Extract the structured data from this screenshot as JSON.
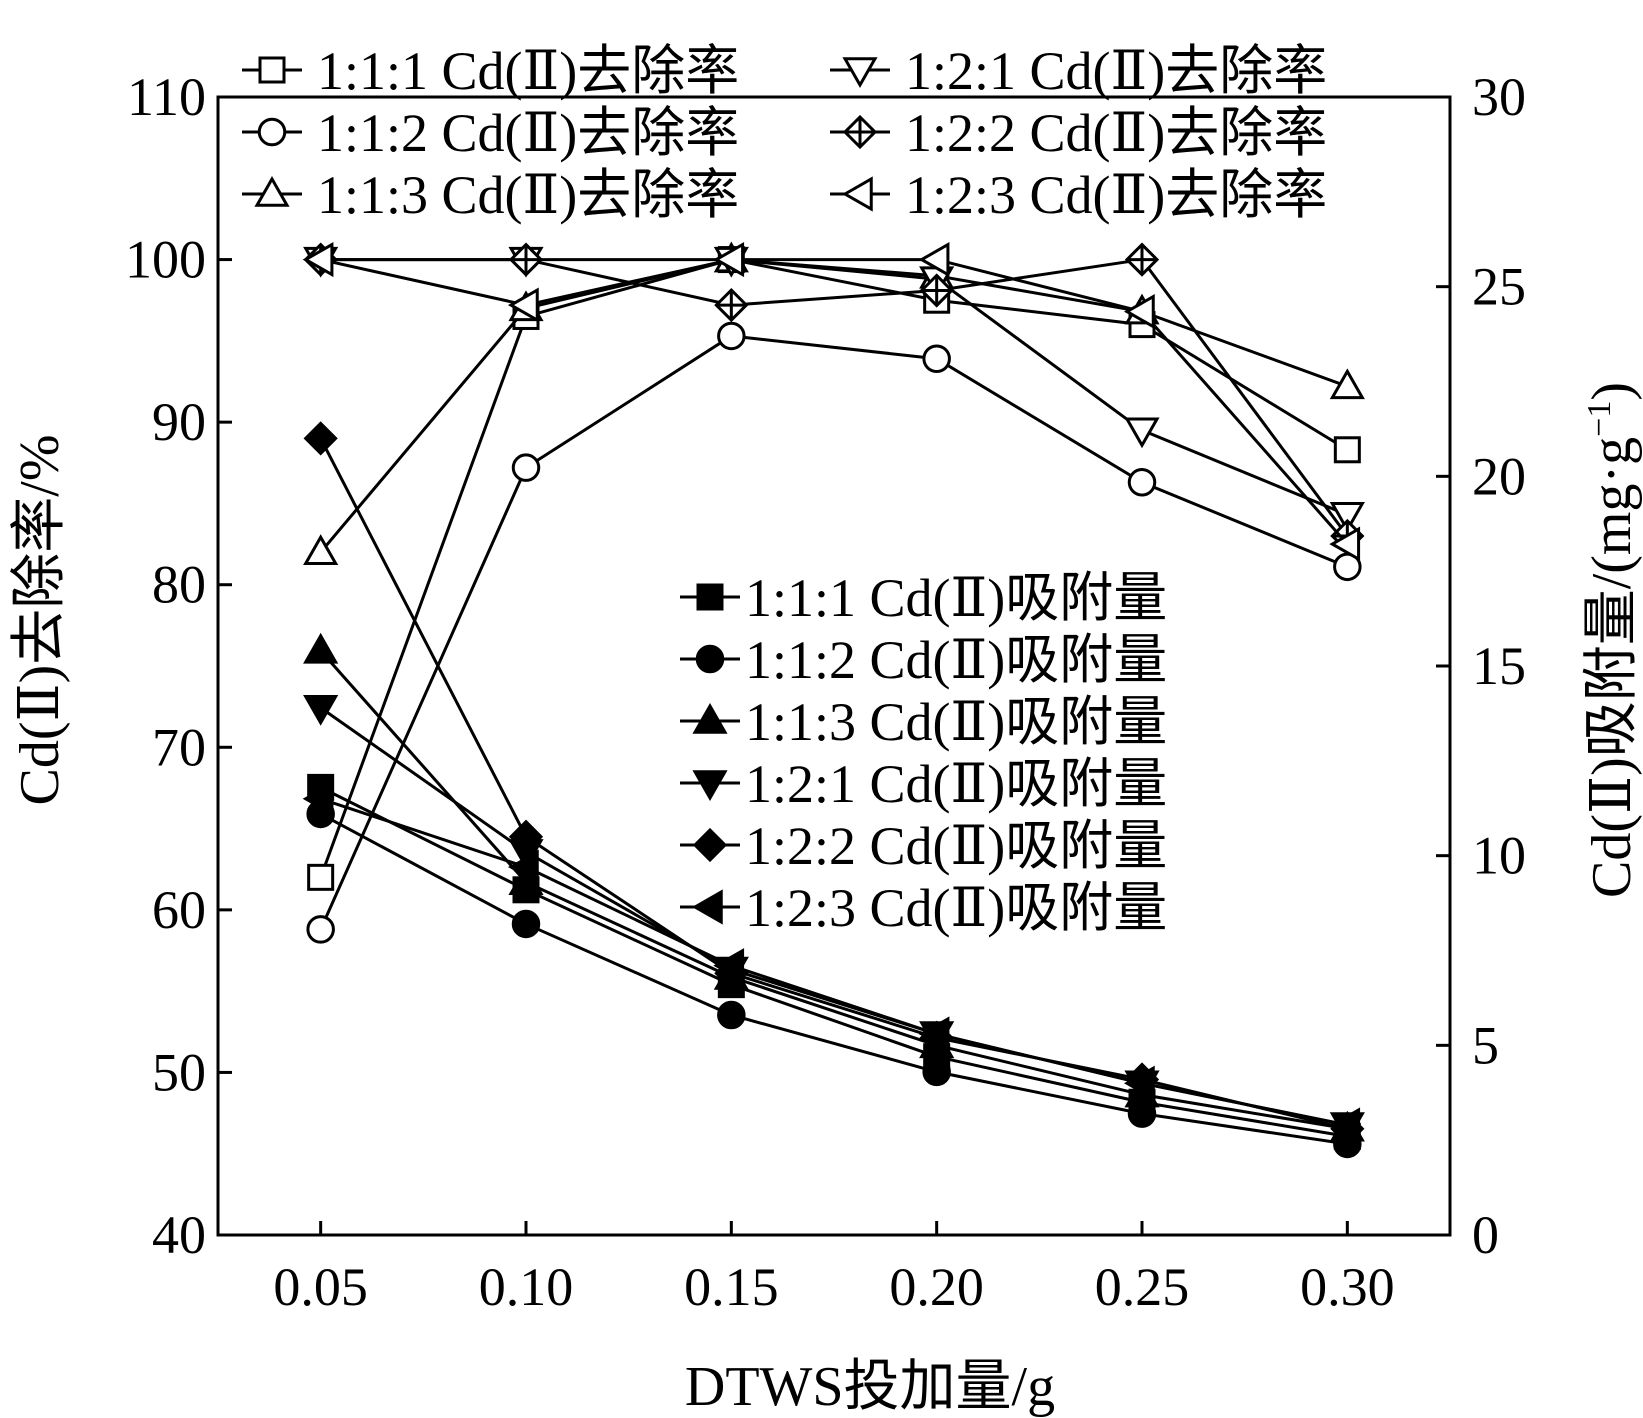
{
  "chart_data": {
    "type": "line",
    "title": "",
    "x": [
      0.05,
      0.1,
      0.15,
      0.2,
      0.25,
      0.3
    ],
    "x_tick_labels": [
      "0.05",
      "0.10",
      "0.15",
      "0.20",
      "0.25",
      "0.30"
    ],
    "xlabel": "DTWS投加量/g",
    "xlim": [
      0.025,
      0.325
    ],
    "y_left": {
      "label": "Cd(Ⅱ)去除率/%",
      "ylim": [
        40,
        110
      ],
      "ticks": [
        40,
        50,
        60,
        70,
        80,
        90,
        100,
        110
      ],
      "tick_labels": [
        "40",
        "50",
        "60",
        "70",
        "80",
        "90",
        "100",
        "110"
      ]
    },
    "y_right": {
      "label_main": "Cd(Ⅱ)吸附量/(mg·g",
      "label_sup": "−1",
      "label_close": ")",
      "ylim": [
        0,
        30
      ],
      "ticks": [
        0,
        5,
        10,
        15,
        20,
        25,
        30
      ],
      "tick_labels": [
        "0",
        "5",
        "10",
        "15",
        "20",
        "25",
        "30"
      ]
    },
    "series_removal": [
      {
        "name": "1:1:1 Cd(Ⅱ)去除率",
        "marker": "square-open",
        "values": [
          62,
          96.5,
          100,
          97.5,
          96,
          88.3
        ]
      },
      {
        "name": "1:1:2 Cd(Ⅱ)去除率",
        "marker": "circle-open",
        "values": [
          58.8,
          87.2,
          95.3,
          93.9,
          86.3,
          81.1
        ]
      },
      {
        "name": "1:1:3 Cd(Ⅱ)去除率",
        "marker": "triangle-up-open",
        "values": [
          82,
          97,
          100,
          99,
          96.8,
          92.2
        ]
      },
      {
        "name": "1:2:1 Cd(Ⅱ)去除率",
        "marker": "triangle-down-open",
        "values": [
          100,
          100,
          100,
          98.8,
          89.5,
          84.3
        ]
      },
      {
        "name": "1:2:2 Cd(Ⅱ)去除率",
        "marker": "diamond-cross",
        "values": [
          100,
          100,
          97.2,
          98.1,
          100,
          83
        ]
      },
      {
        "name": "1:2:3 Cd(Ⅱ)去除率",
        "marker": "triangle-left-open",
        "values": [
          100,
          97.2,
          100,
          100,
          96.8,
          82.5
        ]
      }
    ],
    "series_adsorption": [
      {
        "name": "1:1:1 Cd(Ⅱ)吸附量",
        "marker": "square-filled",
        "values": [
          11.8,
          9.1,
          6.6,
          4.7,
          3.5,
          2.6
        ]
      },
      {
        "name": "1:1:2 Cd(Ⅱ)吸附量",
        "marker": "circle-filled",
        "values": [
          11.1,
          8.2,
          5.8,
          4.3,
          3.2,
          2.4
        ]
      },
      {
        "name": "1:1:3 Cd(Ⅱ)吸附量",
        "marker": "triangle-up-filled",
        "values": [
          15.4,
          9.3,
          6.8,
          5,
          3.7,
          2.8
        ]
      },
      {
        "name": "1:2:1 Cd(Ⅱ)吸附量",
        "marker": "triangle-down-filled",
        "values": [
          13.9,
          10.1,
          7,
          5.3,
          4,
          2.9
        ]
      },
      {
        "name": "1:2:2 Cd(Ⅱ)吸附量",
        "marker": "diamond-filled",
        "values": [
          21,
          10.5,
          6.9,
          5.2,
          4.1,
          2.8
        ]
      },
      {
        "name": "1:2:3 Cd(Ⅱ)吸附量",
        "marker": "triangle-left-filled",
        "values": [
          11.5,
          9.7,
          7.1,
          5.3,
          4,
          2.9
        ]
      }
    ],
    "legend_removal_position": "top",
    "legend_adsorption_position": "center-right",
    "grid": false
  }
}
